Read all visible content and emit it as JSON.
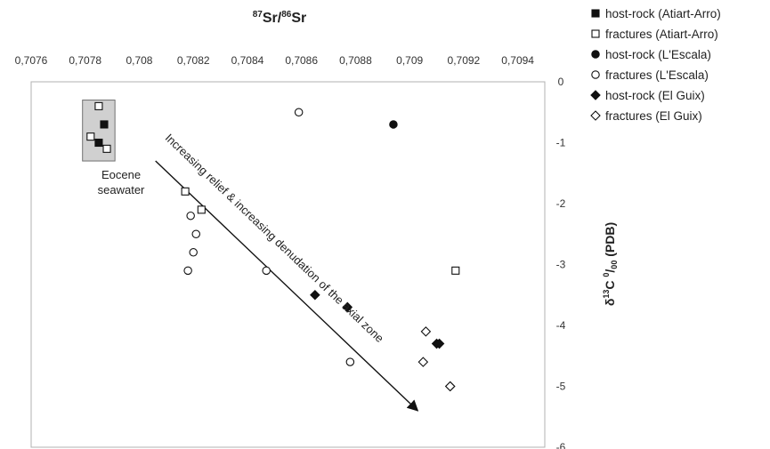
{
  "chart_data": {
    "type": "scatter",
    "title": "",
    "x_axis": {
      "label_parts": [
        "87",
        "Sr/",
        "86",
        "Sr"
      ],
      "position": "top",
      "range": [
        0.7076,
        0.7095
      ],
      "ticks": [
        0.7076,
        0.7078,
        0.708,
        0.7082,
        0.7084,
        0.7086,
        0.7088,
        0.709,
        0.7092,
        0.7094
      ],
      "tick_labels": [
        "0,7076",
        "0,7078",
        "0,708",
        "0,7082",
        "0,7084",
        "0,7086",
        "0,7088",
        "0,709",
        "0,7092",
        "0,7094"
      ]
    },
    "y_axis": {
      "label_parts": [
        "δ",
        "13",
        "C ",
        "0",
        "/",
        "00",
        " (PDB)"
      ],
      "position": "right",
      "range": [
        -6,
        0
      ],
      "ticks": [
        0,
        -1,
        -2,
        -3,
        -4,
        -5,
        -6
      ],
      "tick_labels": [
        "0",
        "-1",
        "-2",
        "-3",
        "-4",
        "-5",
        "-6"
      ]
    },
    "grid": false,
    "legend_position": "right-outside",
    "series": [
      {
        "name": "host-rock (Atiart-Arro)",
        "marker": "square-filled",
        "points": [
          [
            0.70787,
            -0.7
          ],
          [
            0.70785,
            -1.0
          ]
        ]
      },
      {
        "name": "fractures (Atiart-Arro)",
        "marker": "square-open",
        "points": [
          [
            0.70785,
            -0.4
          ],
          [
            0.70782,
            -0.9
          ],
          [
            0.70788,
            -1.1
          ],
          [
            0.70817,
            -1.8
          ],
          [
            0.70823,
            -2.1
          ],
          [
            0.70917,
            -3.1
          ]
        ]
      },
      {
        "name": "host-rock (L'Escala)",
        "marker": "circle-filled",
        "points": [
          [
            0.70894,
            -0.7
          ]
        ]
      },
      {
        "name": "fractures (L'Escala)",
        "marker": "circle-open",
        "points": [
          [
            0.70859,
            -0.5
          ],
          [
            0.70819,
            -2.2
          ],
          [
            0.70821,
            -2.5
          ],
          [
            0.7082,
            -2.8
          ],
          [
            0.70818,
            -3.1
          ],
          [
            0.70847,
            -3.1
          ],
          [
            0.70878,
            -4.6
          ]
        ]
      },
      {
        "name": "host-rock (El Guix)",
        "marker": "diamond-filled",
        "points": [
          [
            0.70865,
            -3.5
          ],
          [
            0.70877,
            -3.7
          ],
          [
            0.7091,
            -4.3
          ],
          [
            0.70911,
            -4.3
          ],
          [
            0.70915,
            -5.0
          ]
        ]
      },
      {
        "name": "fractures (El Guix)",
        "marker": "diamond-open",
        "points": [
          [
            0.70906,
            -4.1
          ],
          [
            0.70905,
            -4.6
          ],
          [
            0.70915,
            -5.0
          ]
        ]
      }
    ],
    "annotations": {
      "seawater_box": {
        "label_lines": [
          "Eocene",
          "seawater"
        ],
        "x_range": [
          0.70779,
          0.70791
        ],
        "y_range": [
          -0.3,
          -1.3
        ]
      },
      "trend_arrow": {
        "label": "Increasing relief & increasing denudation of the axial zone",
        "from": [
          0.70806,
          -1.3
        ],
        "to": [
          0.70903,
          -5.4
        ]
      }
    }
  }
}
